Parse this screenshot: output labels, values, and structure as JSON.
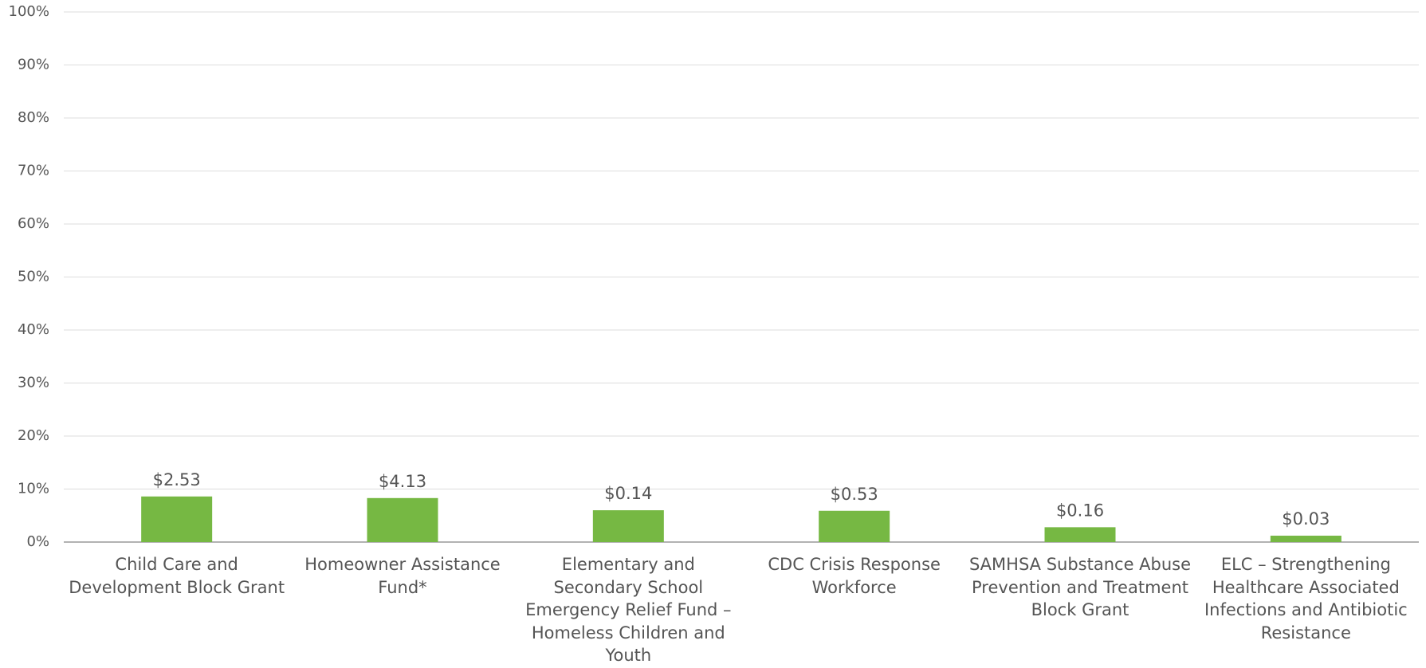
{
  "chart_data": {
    "type": "bar",
    "categories": [
      "Child Care and Development Block Grant",
      "Homeowner Assistance Fund*",
      "Elementary and Secondary School Emergency Relief Fund – Homeless Children and Youth",
      "CDC Crisis Response Workforce",
      "SAMHSA Substance Abuse Prevention and Treatment Block Grant",
      "ELC – Strengthening Healthcare Associated Infections and Antibiotic Resistance"
    ],
    "values": [
      8.6,
      8.3,
      6.0,
      5.9,
      2.8,
      1.2
    ],
    "bar_labels": [
      "$2.53",
      "$4.13",
      "$0.14",
      "$0.53",
      "$0.16",
      "$0.03"
    ],
    "color": "#76b843",
    "ylim": [
      0,
      100
    ],
    "yticks": [
      {
        "value": 0,
        "label": "0%"
      },
      {
        "value": 10,
        "label": "10%"
      },
      {
        "value": 20,
        "label": "20%"
      },
      {
        "value": 30,
        "label": "30%"
      },
      {
        "value": 40,
        "label": "40%"
      },
      {
        "value": 50,
        "label": "50%"
      },
      {
        "value": 60,
        "label": "60%"
      },
      {
        "value": 70,
        "label": "70%"
      },
      {
        "value": 80,
        "label": "80%"
      },
      {
        "value": 90,
        "label": "90%"
      },
      {
        "value": 100,
        "label": "100%"
      }
    ],
    "grid": true
  }
}
